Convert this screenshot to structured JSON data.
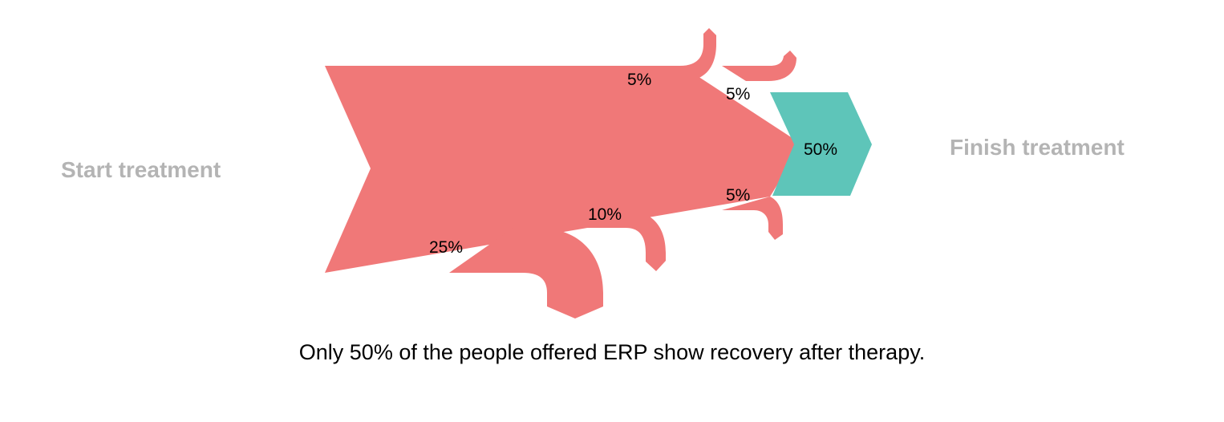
{
  "colors": {
    "dropout": "#f07878",
    "finish": "#5ec5b9",
    "side_label": "#b4b4b4",
    "caption": "#000000"
  },
  "labels": {
    "start": "Start treatment",
    "finish": "Finish treatment"
  },
  "flows": {
    "dropout_1": "5%",
    "dropout_2": "5%",
    "dropout_3": "5%",
    "dropout_4": "10%",
    "dropout_5": "25%",
    "finish": "50%"
  },
  "caption": "Only 50% of the people offered ERP show recovery after therapy."
}
